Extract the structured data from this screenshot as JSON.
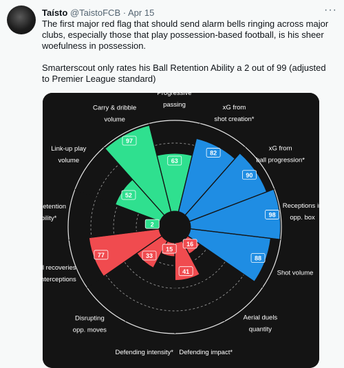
{
  "tweet": {
    "display_name": "Taísto",
    "handle": "@TaistoFCB",
    "separator": "·",
    "date": "Apr 15",
    "more_icon": "more-horizontal-icon",
    "paragraph1": "The first major red flag that should send alarm bells ringing across major clubs, especially those that play possession-based football, is his sheer woefulness in possession.",
    "paragraph2": "Smarterscout only rates his Ball Retention Ability a 2 out of 99 (adjusted to Premier League standard)"
  },
  "colors": {
    "green": "#2fe08f",
    "blue": "#1f8de3",
    "red": "#f04b4f",
    "chart_bg": "#141414"
  },
  "chart_data": {
    "type": "polar-bar",
    "scale_max": 99,
    "metrics": [
      {
        "label_lines": [
          "Progressive",
          "passing"
        ],
        "value": 63,
        "color": "green"
      },
      {
        "label_lines": [
          "xG from",
          "shot creation*"
        ],
        "value": 82,
        "color": "blue"
      },
      {
        "label_lines": [
          "xG from",
          "ball progression*"
        ],
        "value": 90,
        "color": "blue"
      },
      {
        "label_lines": [
          "Receptions in",
          "opp. box"
        ],
        "value": 98,
        "color": "blue"
      },
      {
        "label_lines": [
          "Shot volume"
        ],
        "value": 88,
        "color": "blue"
      },
      {
        "label_lines": [
          "Aerial duels",
          "quantity"
        ],
        "value": 16,
        "color": "red"
      },
      {
        "label_lines": [
          "Defending impact*"
        ],
        "value": 41,
        "color": "red"
      },
      {
        "label_lines": [
          "Defending intensity*"
        ],
        "value": 15,
        "color": "red"
      },
      {
        "label_lines": [
          "Disrupting",
          "opp. moves"
        ],
        "value": 33,
        "color": "red"
      },
      {
        "label_lines": [
          "Ball recoveries",
          "& interceptions"
        ],
        "value": 77,
        "color": "red"
      },
      {
        "label_lines": [
          "Ball retention",
          "ability*"
        ],
        "value": 2,
        "color": "green"
      },
      {
        "label_lines": [
          "Link-up play",
          "volume"
        ],
        "value": 52,
        "color": "green"
      },
      {
        "label_lines": [
          "Carry & dribble",
          "volume"
        ],
        "value": 97,
        "color": "green"
      }
    ]
  }
}
